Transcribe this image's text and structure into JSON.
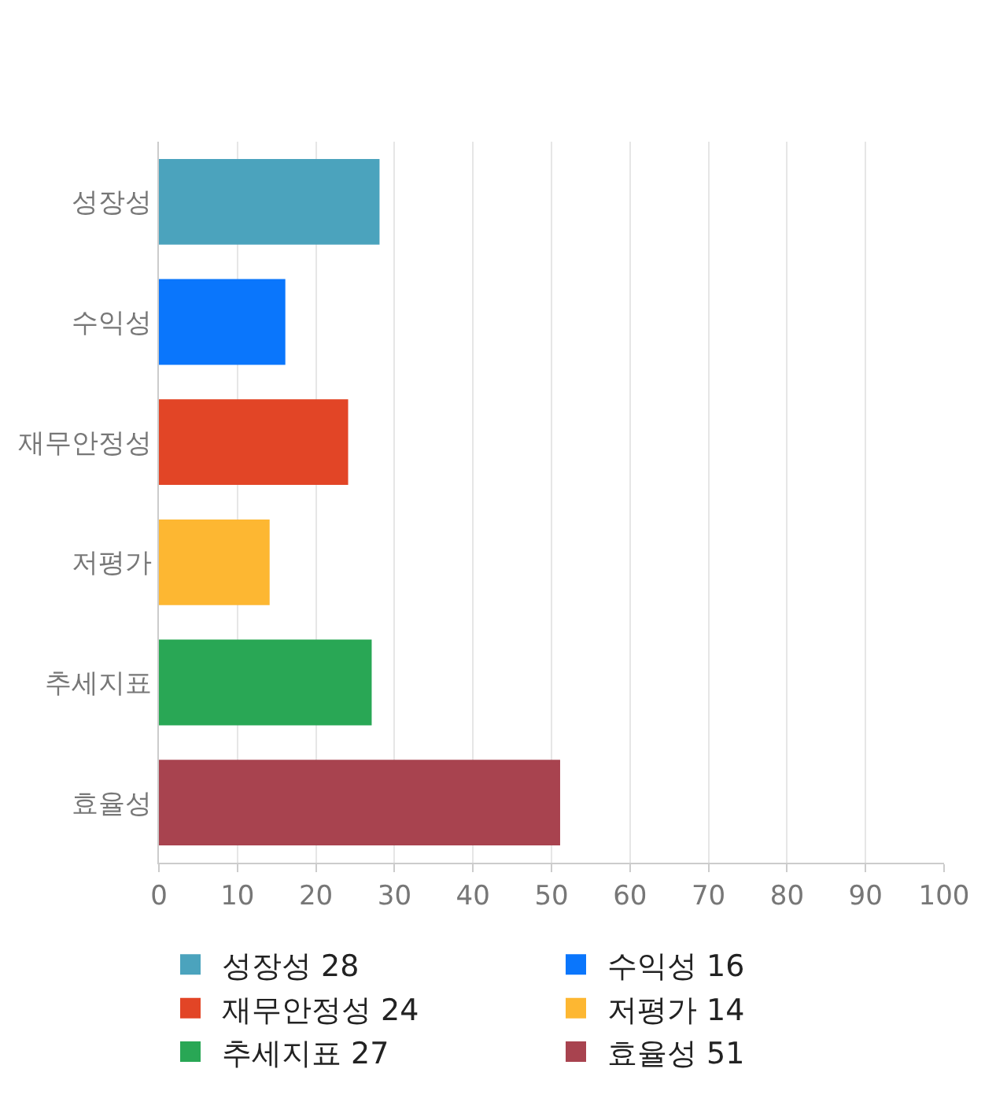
{
  "chart_data": {
    "type": "bar",
    "orientation": "horizontal",
    "categories": [
      "성장성",
      "수익성",
      "재무안정성",
      "저평가",
      "추세지표",
      "효율성"
    ],
    "series": [
      {
        "name": "성장성 28",
        "color": "#4ba3bd",
        "values": [
          28,
          null,
          null,
          null,
          null,
          null
        ]
      },
      {
        "name": "수익성 16",
        "color": "#0a76fc",
        "values": [
          null,
          16,
          null,
          null,
          null,
          null
        ]
      },
      {
        "name": "재무안정성 24",
        "color": "#e24526",
        "values": [
          null,
          null,
          24,
          null,
          null,
          null
        ]
      },
      {
        "name": "저평가 14",
        "color": "#fdb732",
        "values": [
          null,
          null,
          null,
          14,
          null,
          null
        ]
      },
      {
        "name": "추세지표 27",
        "color": "#29a755",
        "values": [
          null,
          null,
          null,
          null,
          27,
          null
        ]
      },
      {
        "name": "효율성 51",
        "color": "#a8434f",
        "values": [
          null,
          null,
          null,
          null,
          null,
          51
        ]
      }
    ],
    "xlim": [
      0,
      100
    ],
    "xticks": [
      0,
      10,
      20,
      30,
      40,
      50,
      60,
      70,
      80,
      90,
      100
    ],
    "grid": "x",
    "legend": "bottom"
  }
}
